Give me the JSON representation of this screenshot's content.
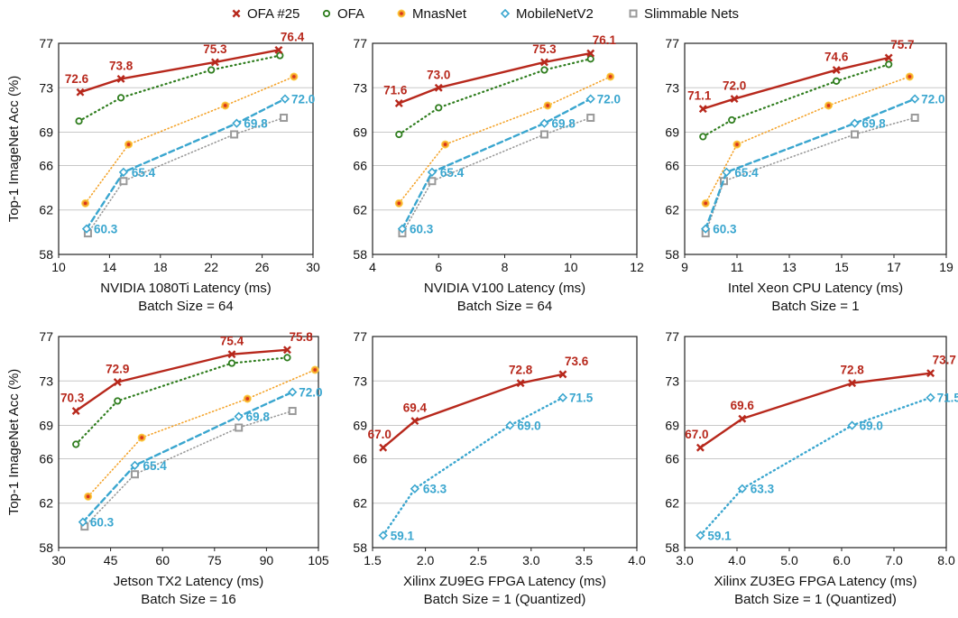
{
  "y_axis_label": "Top-1 ImageNet Acc (%)",
  "legend": [
    {
      "name": "OFA #25",
      "color": "#b7281c",
      "marker": "x",
      "icon": "cross-marker-icon"
    },
    {
      "name": "OFA",
      "color": "#2f7d1e",
      "marker": "circle",
      "icon": "circle-marker-icon"
    },
    {
      "name": "MnasNet",
      "color": "#f4a32a",
      "marker": "dot",
      "icon": "orange-dot-marker-icon"
    },
    {
      "name": "MobileNetV2",
      "color": "#3aa6cf",
      "marker": "diamond",
      "icon": "diamond-marker-icon"
    },
    {
      "name": "Slimmable Nets",
      "color": "#9a9a9a",
      "marker": "square",
      "icon": "square-marker-icon"
    }
  ],
  "chart_data": [
    {
      "type": "line",
      "xlabel": "NVIDIA 1080Ti Latency (ms)",
      "subtitle": "Batch Size = 64",
      "ylabel": "Top-1 ImageNet Acc (%)",
      "xlim": [
        10,
        30
      ],
      "xticks": [
        10,
        14,
        18,
        22,
        26,
        30
      ],
      "xtick_labels": [
        "10",
        "14",
        "18",
        "22",
        "26",
        "30"
      ],
      "ylim": [
        58,
        77
      ],
      "yticks": [
        58,
        62,
        66,
        69,
        73,
        77
      ],
      "ytick_labels": [
        "58",
        "62",
        "66",
        "69",
        "73",
        "77"
      ],
      "grid": "horizontal",
      "series": [
        {
          "name": "OFA #25",
          "x": [
            11.7,
            14.9,
            22.3,
            27.3
          ],
          "y": [
            72.6,
            73.8,
            75.3,
            76.4
          ],
          "labels": [
            "72.6",
            "73.8",
            "75.3",
            "76.4"
          ]
        },
        {
          "name": "OFA",
          "x": [
            11.6,
            14.9,
            22.0,
            27.4
          ],
          "y": [
            70.0,
            72.1,
            74.6,
            75.9
          ]
        },
        {
          "name": "MnasNet",
          "x": [
            12.1,
            15.5,
            23.1,
            28.5
          ],
          "y": [
            62.6,
            67.9,
            71.4,
            74.0
          ]
        },
        {
          "name": "MobileNetV2",
          "x": [
            12.2,
            15.1,
            24.0,
            27.8
          ],
          "y": [
            60.3,
            65.4,
            69.8,
            72.0
          ],
          "labels": [
            "60.3",
            "65.4",
            "69.8",
            "72.0"
          ]
        },
        {
          "name": "Slimmable Nets",
          "x": [
            12.3,
            15.1,
            23.8,
            27.7
          ],
          "y": [
            59.9,
            64.6,
            68.8,
            70.3
          ]
        }
      ]
    },
    {
      "type": "line",
      "xlabel": "NVIDIA V100 Latency (ms)",
      "subtitle": "Batch Size = 64",
      "ylabel": "",
      "xlim": [
        4,
        12
      ],
      "xticks": [
        4,
        6,
        8,
        10,
        12
      ],
      "xtick_labels": [
        "4",
        "6",
        "8",
        "10",
        "12"
      ],
      "ylim": [
        58,
        77
      ],
      "yticks": [
        58,
        62,
        66,
        69,
        73,
        77
      ],
      "ytick_labels": [
        "58",
        "62",
        "66",
        "69",
        "73",
        "77"
      ],
      "grid": "horizontal",
      "series": [
        {
          "name": "OFA #25",
          "x": [
            4.8,
            6.0,
            9.2,
            10.6
          ],
          "y": [
            71.6,
            73.0,
            75.3,
            76.1
          ],
          "labels": [
            "71.6",
            "73.0",
            "75.3",
            "76.1"
          ]
        },
        {
          "name": "OFA",
          "x": [
            4.8,
            6.0,
            9.2,
            10.6
          ],
          "y": [
            68.8,
            71.2,
            74.6,
            75.6
          ]
        },
        {
          "name": "MnasNet",
          "x": [
            4.8,
            6.2,
            9.3,
            11.2
          ],
          "y": [
            62.6,
            67.9,
            71.4,
            74.0
          ]
        },
        {
          "name": "MobileNetV2",
          "x": [
            4.9,
            5.8,
            9.2,
            10.6
          ],
          "y": [
            60.3,
            65.4,
            69.8,
            72.0
          ],
          "labels": [
            "60.3",
            "65.4",
            "69.8",
            "72.0"
          ]
        },
        {
          "name": "Slimmable Nets",
          "x": [
            4.9,
            5.8,
            9.2,
            10.6
          ],
          "y": [
            59.9,
            64.6,
            68.8,
            70.3
          ]
        }
      ]
    },
    {
      "type": "line",
      "xlabel": "Intel Xeon CPU Latency (ms)",
      "subtitle": "Batch Size = 1",
      "ylabel": "",
      "xlim": [
        9,
        19
      ],
      "xticks": [
        9,
        11,
        13,
        15,
        17,
        19
      ],
      "xtick_labels": [
        "9",
        "11",
        "13",
        "15",
        "17",
        "19"
      ],
      "ylim": [
        58,
        77
      ],
      "yticks": [
        58,
        62,
        66,
        69,
        73,
        77
      ],
      "ytick_labels": [
        "58",
        "62",
        "66",
        "69",
        "73",
        "77"
      ],
      "grid": "horizontal",
      "series": [
        {
          "name": "OFA #25",
          "x": [
            9.7,
            10.9,
            14.8,
            16.8
          ],
          "y": [
            71.1,
            72.0,
            74.6,
            75.7
          ],
          "labels": [
            "71.1",
            "72.0",
            "74.6",
            "75.7"
          ]
        },
        {
          "name": "OFA",
          "x": [
            9.7,
            10.8,
            14.8,
            16.8
          ],
          "y": [
            68.6,
            70.1,
            73.6,
            75.1
          ]
        },
        {
          "name": "MnasNet",
          "x": [
            9.8,
            11.0,
            14.5,
            17.6
          ],
          "y": [
            62.6,
            67.9,
            71.4,
            74.0
          ]
        },
        {
          "name": "MobileNetV2",
          "x": [
            9.8,
            10.6,
            15.5,
            17.8
          ],
          "y": [
            60.3,
            65.4,
            69.8,
            72.0
          ],
          "labels": [
            "60.3",
            "65.4",
            "69.8",
            "72.0"
          ]
        },
        {
          "name": "Slimmable Nets",
          "x": [
            9.8,
            10.5,
            15.5,
            17.8
          ],
          "y": [
            59.9,
            64.6,
            68.8,
            70.3
          ]
        }
      ]
    },
    {
      "type": "line",
      "xlabel": "Jetson TX2 Latency (ms)",
      "subtitle": "Batch Size = 16",
      "ylabel": "Top-1 ImageNet Acc (%)",
      "xlim": [
        30,
        105
      ],
      "xticks": [
        30,
        45,
        60,
        75,
        90,
        105
      ],
      "xtick_labels": [
        "30",
        "45",
        "60",
        "75",
        "90",
        "105"
      ],
      "ylim": [
        58,
        77
      ],
      "yticks": [
        58,
        62,
        66,
        69,
        73,
        77
      ],
      "ytick_labels": [
        "58",
        "62",
        "66",
        "69",
        "73",
        "77"
      ],
      "grid": "horizontal",
      "series": [
        {
          "name": "OFA #25",
          "x": [
            35.0,
            47.0,
            80.0,
            96.0
          ],
          "y": [
            70.3,
            72.9,
            75.4,
            75.8
          ],
          "labels": [
            "70.3",
            "72.9",
            "75.4",
            "75.8"
          ]
        },
        {
          "name": "OFA",
          "x": [
            35.0,
            47.0,
            80.0,
            96.0
          ],
          "y": [
            67.3,
            71.2,
            74.6,
            75.1
          ]
        },
        {
          "name": "MnasNet",
          "x": [
            38.5,
            54.0,
            84.5,
            104.0
          ],
          "y": [
            62.6,
            67.9,
            71.4,
            74.0
          ]
        },
        {
          "name": "MobileNetV2",
          "x": [
            37.0,
            52.0,
            82.0,
            97.5
          ],
          "y": [
            60.3,
            65.4,
            69.8,
            72.0
          ],
          "labels": [
            "60.3",
            "65.4",
            "69.8",
            "72.0"
          ]
        },
        {
          "name": "Slimmable Nets",
          "x": [
            37.5,
            52.0,
            82.0,
            97.5
          ],
          "y": [
            59.9,
            64.6,
            68.8,
            70.3
          ]
        }
      ]
    },
    {
      "type": "line",
      "xlabel": "Xilinx ZU9EG FPGA Latency (ms)",
      "subtitle": "Batch Size = 1 (Quantized)",
      "ylabel": "",
      "xlim": [
        1.5,
        4.0
      ],
      "xticks": [
        1.5,
        2.0,
        2.5,
        3.0,
        3.5,
        4.0
      ],
      "xtick_labels": [
        "1.5",
        "2.0",
        "2.5",
        "3.0",
        "3.5",
        "4.0"
      ],
      "ylim": [
        58,
        77
      ],
      "yticks": [
        58,
        62,
        66,
        69,
        73,
        77
      ],
      "ytick_labels": [
        "58",
        "62",
        "66",
        "69",
        "73",
        "77"
      ],
      "grid": "horizontal",
      "series": [
        {
          "name": "OFA #25",
          "x": [
            1.6,
            1.9,
            2.9,
            3.3
          ],
          "y": [
            67.0,
            69.4,
            72.8,
            73.6
          ],
          "labels": [
            "67.0",
            "69.4",
            "72.8",
            "73.6"
          ]
        },
        {
          "name": "MobileNetV2",
          "x": [
            1.6,
            1.9,
            2.8,
            3.3
          ],
          "y": [
            59.1,
            63.3,
            69.0,
            71.5
          ],
          "labels": [
            "59.1",
            "63.3",
            "69.0",
            "71.5"
          ]
        }
      ]
    },
    {
      "type": "line",
      "xlabel": "Xilinx ZU3EG FPGA Latency (ms)",
      "subtitle": "Batch Size = 1 (Quantized)",
      "ylabel": "",
      "xlim": [
        3.0,
        8.0
      ],
      "xticks": [
        3.0,
        4.0,
        5.0,
        6.0,
        7.0,
        8.0
      ],
      "xtick_labels": [
        "3.0",
        "4.0",
        "5.0",
        "6.0",
        "7.0",
        "8.0"
      ],
      "ylim": [
        58,
        77
      ],
      "yticks": [
        58,
        62,
        66,
        69,
        73,
        77
      ],
      "ytick_labels": [
        "58",
        "62",
        "66",
        "69",
        "73",
        "77"
      ],
      "grid": "horizontal",
      "series": [
        {
          "name": "OFA #25",
          "x": [
            3.3,
            4.1,
            6.2,
            7.7
          ],
          "y": [
            67.0,
            69.6,
            72.8,
            73.7
          ],
          "labels": [
            "67.0",
            "69.6",
            "72.8",
            "73.7"
          ]
        },
        {
          "name": "MobileNetV2",
          "x": [
            3.3,
            4.1,
            6.2,
            7.7
          ],
          "y": [
            59.1,
            63.3,
            69.0,
            71.5
          ],
          "labels": [
            "59.1",
            "63.3",
            "69.0",
            "71.5"
          ]
        }
      ]
    }
  ]
}
